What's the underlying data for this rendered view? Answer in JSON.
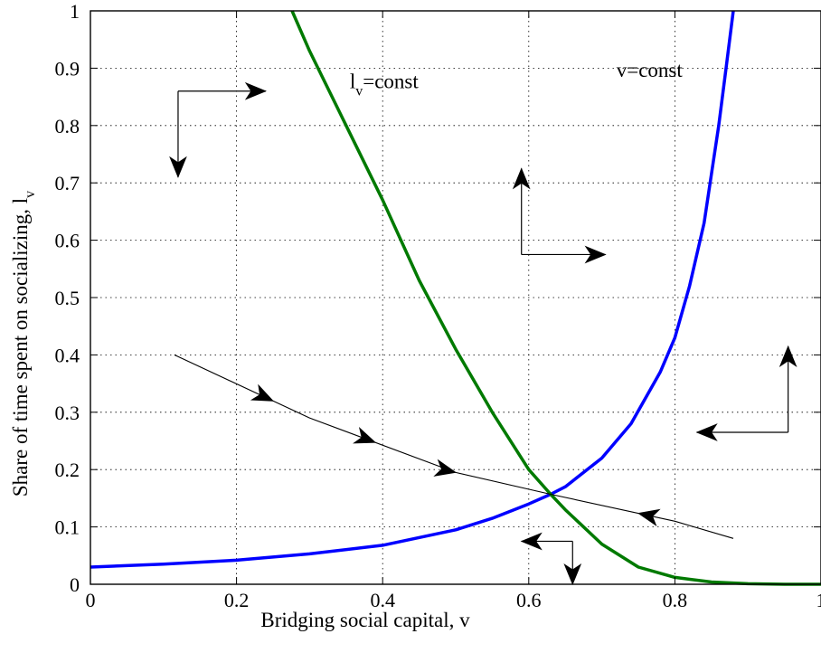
{
  "chart_data": {
    "type": "line",
    "xlabel": "Bridging social capital, v",
    "ylabel_main": "Share of time spent on socializing, l",
    "ylabel_sub": "v",
    "xlim": [
      0,
      1
    ],
    "ylim": [
      0,
      1
    ],
    "xticks": [
      0,
      0.2,
      0.4,
      0.6,
      0.8,
      1
    ],
    "xtick_labels": [
      "0",
      "0.2",
      "0.4",
      "0.6",
      "0.8",
      "1"
    ],
    "yticks": [
      0,
      0.1,
      0.2,
      0.3,
      0.4,
      0.5,
      0.6,
      0.7,
      0.8,
      0.9,
      1
    ],
    "ytick_labels": [
      "0",
      "0.1",
      "0.2",
      "0.3",
      "0.4",
      "0.5",
      "0.6",
      "0.7",
      "0.8",
      "0.9",
      "1"
    ],
    "grid": true,
    "series": [
      {
        "key": "v_const",
        "color": "#0000ff",
        "x": [
          0,
          0.1,
          0.2,
          0.3,
          0.4,
          0.5,
          0.55,
          0.6,
          0.63,
          0.65,
          0.7,
          0.74,
          0.78,
          0.8,
          0.82,
          0.84,
          0.86,
          0.87,
          0.88
        ],
        "y": [
          0.03,
          0.035,
          0.042,
          0.053,
          0.068,
          0.095,
          0.115,
          0.14,
          0.157,
          0.17,
          0.22,
          0.28,
          0.37,
          0.43,
          0.52,
          0.63,
          0.8,
          0.9,
          1.0
        ]
      },
      {
        "key": "lv_const",
        "color": "#007a00",
        "x": [
          0.276,
          0.3,
          0.35,
          0.4,
          0.45,
          0.5,
          0.55,
          0.6,
          0.63,
          0.65,
          0.7,
          0.75,
          0.8,
          0.85,
          0.9,
          0.95,
          1.0
        ],
        "y": [
          1.0,
          0.93,
          0.8,
          0.67,
          0.53,
          0.41,
          0.3,
          0.2,
          0.157,
          0.13,
          0.07,
          0.03,
          0.012,
          0.004,
          0.001,
          0.0,
          0.0
        ]
      },
      {
        "key": "saddle_path",
        "color": "#000000",
        "x": [
          0.115,
          0.3,
          0.5,
          0.63,
          0.8,
          0.88
        ],
        "y": [
          0.4,
          0.29,
          0.195,
          0.157,
          0.11,
          0.08
        ]
      }
    ],
    "annotations": [
      {
        "key": "v_const_label",
        "text": "v=const",
        "x": 0.72,
        "y": 0.885
      },
      {
        "key": "lv_const_label",
        "main": "l",
        "sub": "v",
        "rest": "=const",
        "x": 0.355,
        "y": 0.865
      }
    ],
    "saddle_arrows_at_x": [
      0.25,
      0.39,
      0.5,
      0.75
    ],
    "phase_arrows": [
      {
        "key": "upper-left",
        "corner": [
          0.12,
          0.86
        ],
        "h_end": [
          0.24,
          0.86
        ],
        "v_end": [
          0.12,
          0.71
        ]
      },
      {
        "key": "upper-middle",
        "corner": [
          0.59,
          0.575
        ],
        "h_end": [
          0.705,
          0.575
        ],
        "v_end": [
          0.59,
          0.725
        ]
      },
      {
        "key": "right",
        "corner": [
          0.955,
          0.265
        ],
        "h_end": [
          0.83,
          0.265
        ],
        "v_end": [
          0.955,
          0.415
        ]
      },
      {
        "key": "lower",
        "corner": [
          0.66,
          0.075
        ],
        "h_end": [
          0.59,
          0.075
        ],
        "v_end": [
          0.66,
          0.0
        ]
      }
    ]
  }
}
